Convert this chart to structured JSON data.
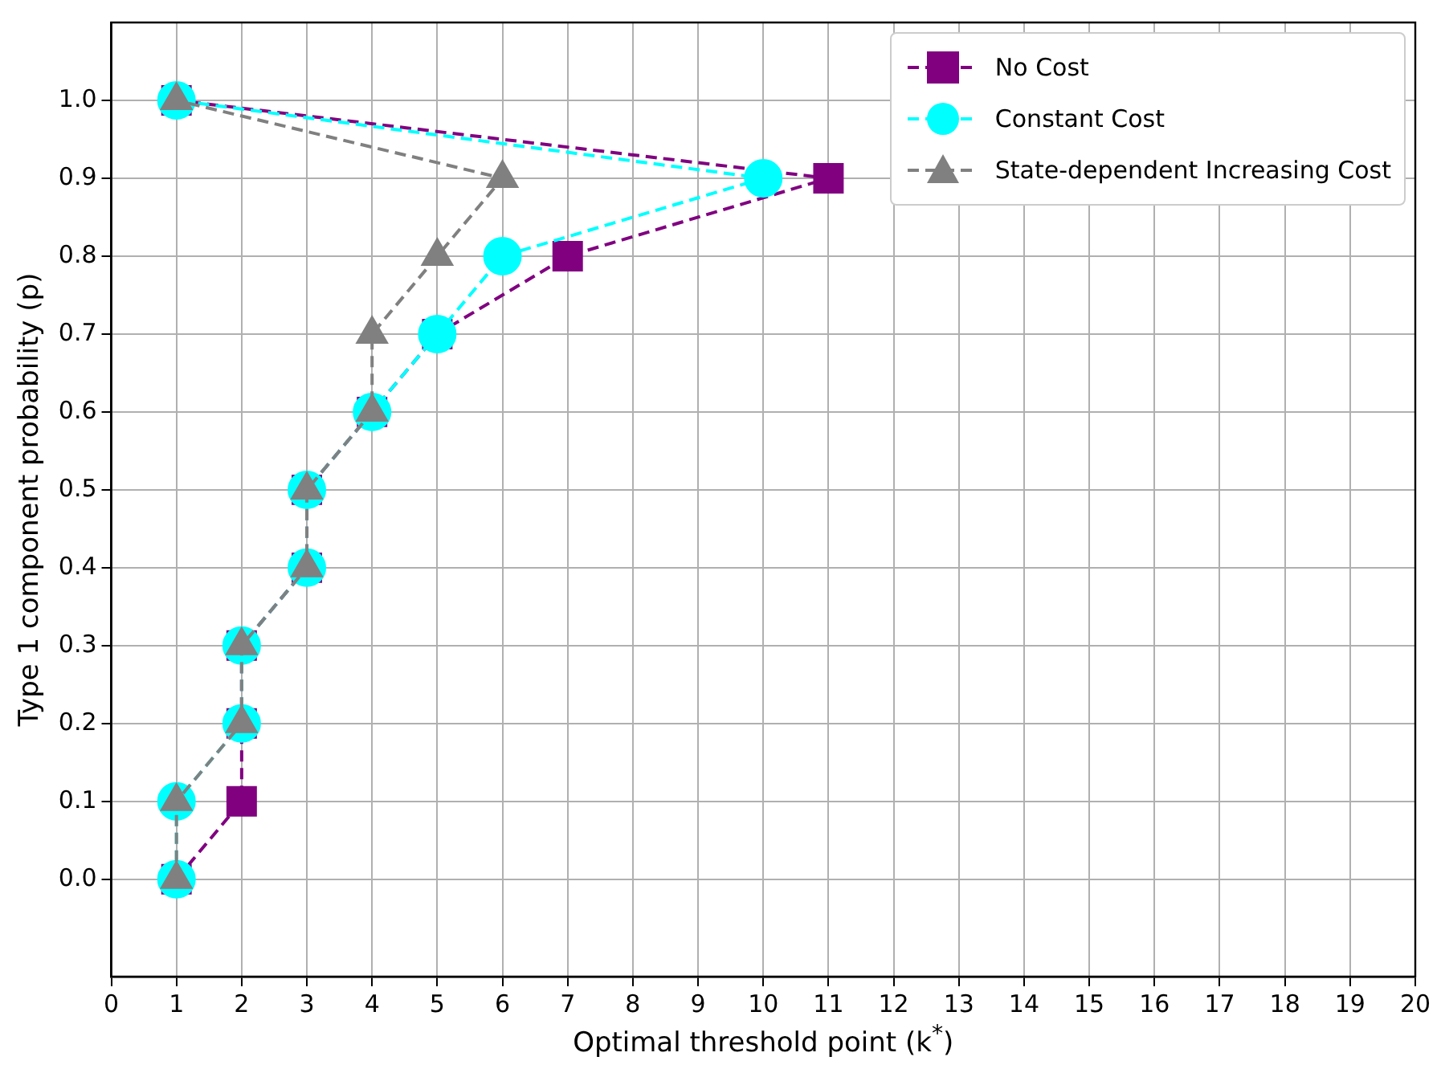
{
  "chart_data": {
    "type": "line",
    "xlabel": "Optimal threshold point (k$^{*}$)",
    "ylabel": "Type 1 component probability (p)",
    "xlim": [
      0,
      20
    ],
    "xticks": [
      0,
      1,
      2,
      3,
      4,
      5,
      6,
      7,
      8,
      9,
      10,
      11,
      12,
      13,
      14,
      15,
      16,
      17,
      18,
      19,
      20
    ],
    "ylim": [
      -0.125,
      1.1
    ],
    "yticks": [
      {
        "value": 0,
        "label": "0.0"
      },
      {
        "value": 0.1,
        "label": "0.1"
      },
      {
        "value": 0.2,
        "label": "0.2"
      },
      {
        "value": 0.3,
        "label": "0.3"
      },
      {
        "value": 0.4,
        "label": "0.4"
      },
      {
        "value": 0.5,
        "label": "0.5"
      },
      {
        "value": 0.6,
        "label": "0.6"
      },
      {
        "value": 0.7,
        "label": "0.7"
      },
      {
        "value": 0.8,
        "label": "0.8"
      },
      {
        "value": 0.9,
        "label": "0.9"
      },
      {
        "value": 1.0,
        "label": "1.0"
      }
    ],
    "grid": true,
    "legend": "top right",
    "line_style": "dashed",
    "series": [
      {
        "name": "No Cost",
        "color": "#800080",
        "marker": "square",
        "x": [
          1,
          2,
          2,
          2,
          3,
          3,
          4,
          5,
          7,
          11,
          1
        ],
        "values": [
          0,
          0.1,
          0.2,
          0.3,
          0.4,
          0.5,
          0.6,
          0.7,
          0.8,
          0.9,
          1.0
        ]
      },
      {
        "name": "Constant Cost",
        "color": "#00ffff",
        "marker": "circle",
        "x": [
          1,
          1,
          2,
          2,
          3,
          3,
          4,
          5,
          6,
          10,
          1
        ],
        "values": [
          0,
          0.1,
          0.2,
          0.3,
          0.4,
          0.5,
          0.6,
          0.7,
          0.8,
          0.9,
          1.0
        ]
      },
      {
        "name": "State-dependent Increasing Cost",
        "color": "#808080",
        "marker": "triangle",
        "x": [
          1,
          1,
          2,
          2,
          3,
          3,
          4,
          4,
          5,
          6,
          1
        ],
        "values": [
          0,
          0.1,
          0.2,
          0.3,
          0.4,
          0.5,
          0.6,
          0.7,
          0.8,
          0.9,
          1.0
        ]
      }
    ]
  }
}
